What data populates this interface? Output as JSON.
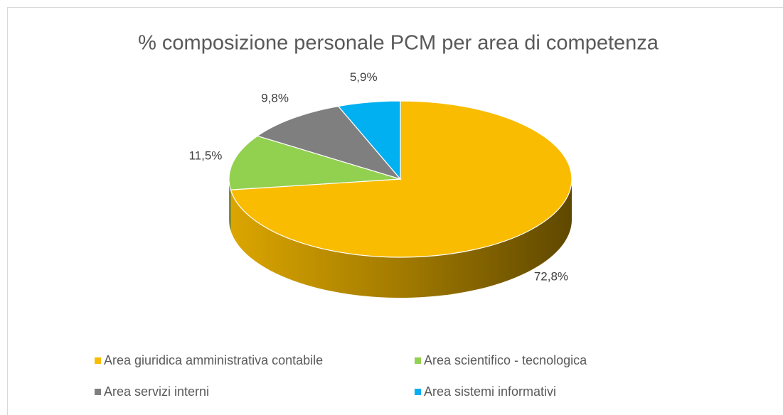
{
  "chart_data": {
    "type": "pie",
    "title": "% composizione personale PCM per area di competenza",
    "categories": [
      "Area giuridica amministrativa contabile",
      "Area scientifico - tecnologica",
      "Area servizi interni",
      "Area sistemi informativi"
    ],
    "values": [
      72.8,
      11.5,
      9.8,
      5.9
    ],
    "value_labels": [
      "72,8%",
      "11,5%",
      "9,8%",
      "5,9%"
    ],
    "colors": [
      "#f9bc00",
      "#92d050",
      "#7f7f7f",
      "#00b0f0"
    ],
    "legend": "bottom"
  }
}
